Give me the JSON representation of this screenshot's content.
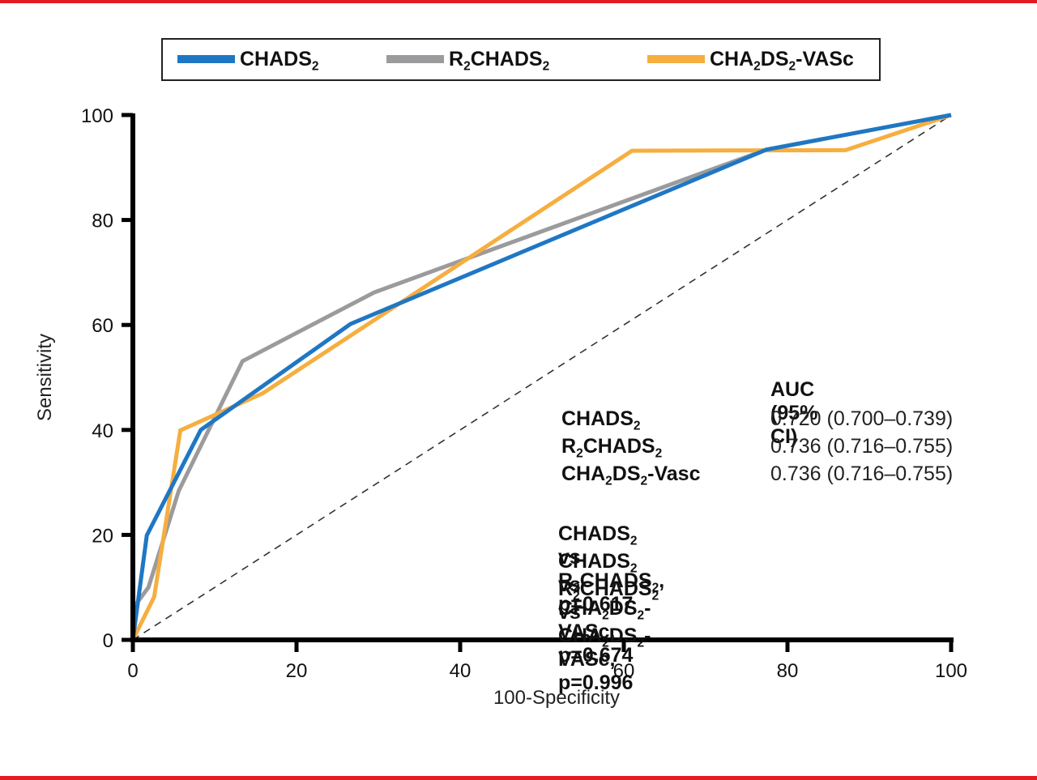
{
  "chart_data": {
    "type": "line",
    "title": "",
    "xlabel": "100-Specificity",
    "ylabel": "Sensitivity",
    "xlim": [
      0,
      100
    ],
    "ylim": [
      0,
      100
    ],
    "xticks": [
      0,
      20,
      40,
      60,
      80,
      100
    ],
    "yticks": [
      0,
      20,
      40,
      60,
      80,
      100
    ],
    "grid": false,
    "legend_position": "top",
    "reference_line": {
      "name": "chance",
      "style": "dashed",
      "color": "#333333",
      "points": [
        [
          0,
          0
        ],
        [
          100,
          100
        ]
      ]
    },
    "series": [
      {
        "name": "CHADS2",
        "label_parts": [
          {
            "t": "CHADS"
          },
          {
            "sub": "2"
          }
        ],
        "color": "#1f77c4",
        "points": [
          [
            0,
            0
          ],
          [
            1.7,
            19.9
          ],
          [
            8.3,
            40
          ],
          [
            26.6,
            60.2
          ],
          [
            77.4,
            93.4
          ],
          [
            100,
            100
          ]
        ]
      },
      {
        "name": "R2CHADS2",
        "label_parts": [
          {
            "t": "R"
          },
          {
            "sub": "2"
          },
          {
            "t": "CHADS"
          },
          {
            "sub": "2"
          }
        ],
        "color": "#9b9b9d",
        "points": [
          [
            0,
            0
          ],
          [
            0,
            6
          ],
          [
            1.9,
            10
          ],
          [
            5.6,
            28.4
          ],
          [
            13.4,
            53.1
          ],
          [
            29.5,
            66.2
          ],
          [
            77.4,
            93.4
          ],
          [
            100,
            100
          ]
        ]
      },
      {
        "name": "CHA2DS2-VASc",
        "label_parts": [
          {
            "t": "CHA"
          },
          {
            "sub": "2"
          },
          {
            "t": "DS"
          },
          {
            "sub": "2"
          },
          {
            "t": "-VASc"
          }
        ],
        "color": "#f6ae3f",
        "points": [
          [
            0,
            0
          ],
          [
            2.6,
            8.2
          ],
          [
            5.8,
            39.9
          ],
          [
            15.9,
            47
          ],
          [
            61,
            93.2
          ],
          [
            87.1,
            93.3
          ],
          [
            100,
            100
          ]
        ]
      }
    ],
    "annotations": {
      "auc_header": "AUC (95% CI)",
      "auc_rows": [
        {
          "name_parts": [
            {
              "t": "CHADS"
            },
            {
              "sub": "2"
            }
          ],
          "value": "0.720 (0.700–0.739)"
        },
        {
          "name_parts": [
            {
              "t": "R"
            },
            {
              "sub": "2"
            },
            {
              "t": "CHADS"
            },
            {
              "sub": "2"
            }
          ],
          "value": "0.736 (0.716–0.755)"
        },
        {
          "name_parts": [
            {
              "t": "CHA"
            },
            {
              "sub": "2"
            },
            {
              "t": "DS"
            },
            {
              "sub": "2"
            },
            {
              "t": "-Vasc"
            }
          ],
          "value": "0.736 (0.716–0.755)"
        }
      ],
      "comparisons": [
        {
          "parts": [
            {
              "t": "CHADS"
            },
            {
              "sub": "2"
            },
            {
              "t": " vs R"
            },
            {
              "sub": "2"
            },
            {
              "t": "CHADS"
            },
            {
              "sub": "2"
            },
            {
              "t": ", p=0.617"
            }
          ]
        },
        {
          "parts": [
            {
              "t": "CHADS"
            },
            {
              "sub": "2"
            },
            {
              "t": " vs CHA"
            },
            {
              "sub": "2"
            },
            {
              "t": "DS"
            },
            {
              "sub": "2"
            },
            {
              "t": "-VASc, p=0.674"
            }
          ]
        },
        {
          "parts": [
            {
              "t": "R"
            },
            {
              "sub": "2"
            },
            {
              "t": "CHADS"
            },
            {
              "sub": "2"
            },
            {
              "t": " vs CHA"
            },
            {
              "sub": "2"
            },
            {
              "t": "DS"
            },
            {
              "sub": "2"
            },
            {
              "t": "-VASc, p=0.996"
            }
          ]
        }
      ]
    }
  },
  "frame": {
    "accent_color": "#e31b23"
  }
}
